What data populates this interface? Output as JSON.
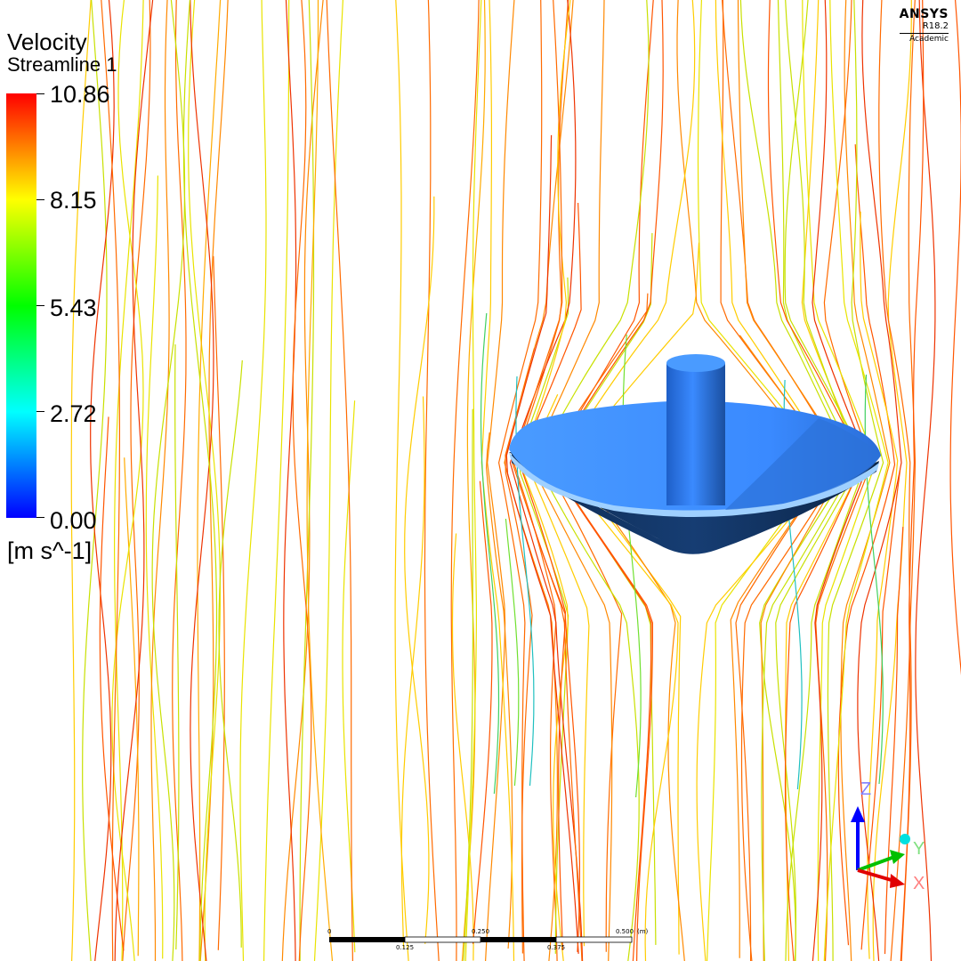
{
  "legend": {
    "title": "Velocity",
    "subtitle": "Streamline 1",
    "ticks": [
      "10.86",
      "8.15",
      "5.43",
      "2.72",
      "0.00"
    ],
    "unit": "[m s^-1]",
    "gradient_colors": [
      "#ff0000",
      "#ff8000",
      "#ffff00",
      "#80ff00",
      "#00ff00",
      "#00ff80",
      "#00ffff",
      "#0080ff",
      "#0000ff"
    ]
  },
  "brand": {
    "name": "ANSYS",
    "version": "R18.2",
    "edition": "Academic"
  },
  "scale_bar": {
    "labels_top": [
      "0",
      "0.250",
      "0.500"
    ],
    "labels_bottom": [
      "0.125",
      "0.375"
    ],
    "unit": "(m)"
  },
  "axes": {
    "z": "Z",
    "y": "Y",
    "x": "X",
    "colors": {
      "z": "#0000ff",
      "y": "#00c000",
      "x": "#e00000"
    }
  },
  "model": {
    "body_color": "#3a8aff",
    "shadow_color": "#10305a"
  },
  "streamline_colors": [
    "#ff8800",
    "#ff6a00",
    "#ffaa00",
    "#ffcc00",
    "#e9e300",
    "#c8e000",
    "#ff5500",
    "#ee3300"
  ]
}
